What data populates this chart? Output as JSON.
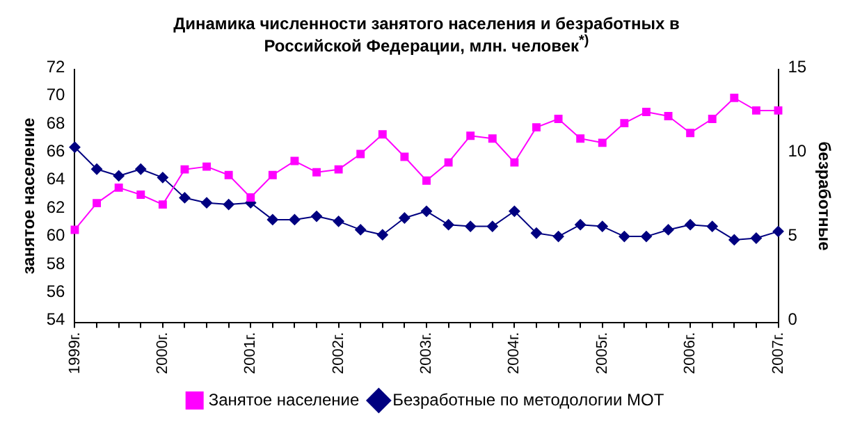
{
  "chart_data": {
    "type": "line",
    "title": "Динамика численности занятого населения и безработных в Российской Федерации, млн. человек$^{*)}$",
    "categories": [
      "1999г.",
      null,
      null,
      null,
      "2000г.",
      null,
      null,
      null,
      "2001г.",
      null,
      null,
      null,
      "2002г.",
      null,
      null,
      null,
      "2003г.",
      null,
      null,
      null,
      "2004г.",
      null,
      null,
      null,
      "2005г.",
      null,
      null,
      null,
      "2006г.",
      null,
      null,
      null,
      "2007г."
    ],
    "series": [
      {
        "name": "Занятое население",
        "color": "#ff00ff",
        "marker": "square",
        "values": [
          60.6,
          62.5,
          63.6,
          63.1,
          62.4,
          64.9,
          65.1,
          64.5,
          62.9,
          64.5,
          65.5,
          64.7,
          64.9,
          66.0,
          67.4,
          65.8,
          64.1,
          65.4,
          67.3,
          67.1,
          65.4,
          67.9,
          68.5,
          67.1,
          66.8,
          68.2,
          69.0,
          68.7,
          67.5,
          68.5,
          70.0,
          69.1,
          69.1
        ]
      },
      {
        "name": "Безработные по методологии МОТ",
        "color": "#000080",
        "marker": "diamond",
        "axis": "y2",
        "values": [
          10.4,
          9.1,
          8.7,
          9.1,
          8.6,
          7.4,
          7.1,
          7.0,
          7.1,
          6.1,
          6.1,
          6.3,
          6.0,
          5.5,
          5.2,
          6.2,
          6.6,
          5.8,
          5.7,
          5.7,
          6.6,
          5.3,
          5.1,
          5.8,
          5.7,
          5.1,
          5.1,
          5.5,
          5.8,
          5.7,
          4.9,
          5.0,
          5.4
        ]
      }
    ],
    "ylabel": "занятое население",
    "y2label": "безработные",
    "ylim": [
      54,
      72
    ],
    "yticks": [
      54,
      56,
      58,
      60,
      62,
      64,
      66,
      68,
      70,
      72
    ],
    "y2lim": [
      0,
      15
    ],
    "y2ticks": [
      0,
      5,
      10,
      15
    ],
    "legend": "bottom",
    "grid": false,
    "line_style": "solid"
  }
}
